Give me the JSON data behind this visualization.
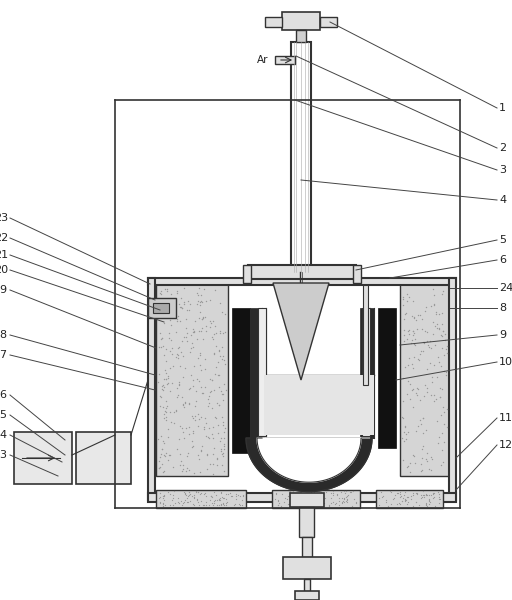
{
  "line_color": "#333333",
  "dark_color": "#111111",
  "figsize": [
    5.12,
    6.0
  ],
  "dpi": 100,
  "label_color": "#222222",
  "label_fs": 8
}
